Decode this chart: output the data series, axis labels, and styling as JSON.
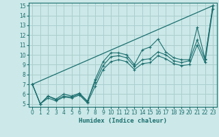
{
  "xlabel": "Humidex (Indice chaleur)",
  "xlim": [
    -0.5,
    23.5
  ],
  "ylim": [
    4.7,
    15.3
  ],
  "xticks": [
    0,
    1,
    2,
    3,
    4,
    5,
    6,
    7,
    8,
    9,
    10,
    11,
    12,
    13,
    14,
    15,
    16,
    17,
    18,
    19,
    20,
    21,
    22,
    23
  ],
  "yticks": [
    5,
    6,
    7,
    8,
    9,
    10,
    11,
    12,
    13,
    14,
    15
  ],
  "bg_color": "#cce8e8",
  "grid_color": "#aacece",
  "line_color": "#1a6e6e",
  "line1_x": [
    0,
    1,
    2,
    3,
    4,
    5,
    6,
    7,
    8,
    9,
    10,
    11,
    12,
    13,
    14,
    15,
    16,
    17,
    18,
    19,
    20,
    21,
    22,
    23
  ],
  "line1_y": [
    7.0,
    5.0,
    5.8,
    5.4,
    5.8,
    5.7,
    6.0,
    5.2,
    7.5,
    9.3,
    10.2,
    10.2,
    10.0,
    9.0,
    10.5,
    10.8,
    11.6,
    10.3,
    9.7,
    9.5,
    9.5,
    12.8,
    9.6,
    15.0
  ],
  "line2_x": [
    0,
    1,
    2,
    3,
    4,
    5,
    6,
    7,
    8,
    9,
    10,
    11,
    12,
    13,
    14,
    15,
    16,
    17,
    18,
    19,
    20,
    21,
    22,
    23
  ],
  "line2_y": [
    7.0,
    5.0,
    5.8,
    5.5,
    6.0,
    5.8,
    6.1,
    5.3,
    7.2,
    8.9,
    9.8,
    9.9,
    9.7,
    8.8,
    9.5,
    9.6,
    10.3,
    10.0,
    9.4,
    9.2,
    9.4,
    11.5,
    9.5,
    15.0
  ],
  "line3_x": [
    0,
    1,
    2,
    3,
    4,
    5,
    6,
    7,
    8,
    9,
    10,
    11,
    12,
    13,
    14,
    15,
    16,
    17,
    18,
    19,
    20,
    21,
    22,
    23
  ],
  "line3_y": [
    7.0,
    5.0,
    5.6,
    5.3,
    5.7,
    5.6,
    5.9,
    5.1,
    6.8,
    8.5,
    9.3,
    9.5,
    9.3,
    8.5,
    9.1,
    9.2,
    9.9,
    9.6,
    9.1,
    8.9,
    9.0,
    11.0,
    9.2,
    14.7
  ],
  "line4_x": [
    0,
    23
  ],
  "line4_y": [
    7.0,
    15.0
  ]
}
